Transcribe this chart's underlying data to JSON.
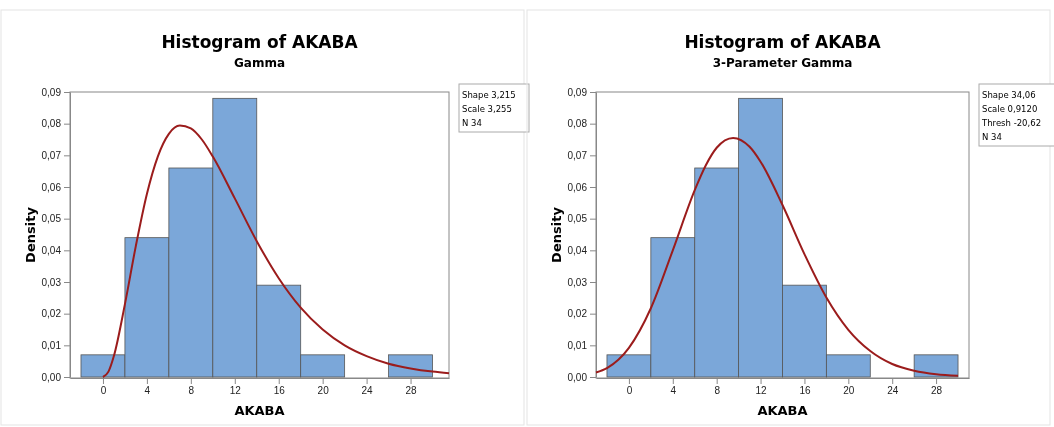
{
  "chart_data": [
    {
      "type": "histogram",
      "title": "Histogram of AKABA",
      "subtitle": "Gamma",
      "xlabel": "AKABA",
      "ylabel": "Density",
      "bins": [
        -2,
        2,
        6,
        10,
        14,
        18,
        22,
        26,
        30
      ],
      "values": [
        0.007,
        0.044,
        0.066,
        0.088,
        0.029,
        0.007,
        0,
        0.007
      ],
      "color": "#7ba7d9",
      "series": [
        {
          "type": "line",
          "color": "#9b1c1c",
          "x": [
            0,
            0.5,
            1,
            2,
            3,
            4,
            5,
            6,
            7,
            8,
            9,
            10,
            12,
            14,
            16,
            18,
            20,
            22,
            24,
            26,
            28,
            30,
            31.5
          ],
          "values": [
            0,
            0.0017,
            0.0067,
            0.023,
            0.0415,
            0.0578,
            0.0697,
            0.0768,
            0.0794,
            0.0785,
            0.075,
            0.0696,
            0.0564,
            0.0429,
            0.0312,
            0.0219,
            0.015,
            0.01,
            0.0066,
            0.0042,
            0.0027,
            0.0017,
            0.0012
          ]
        }
      ],
      "xlim": [
        -3,
        31.5
      ],
      "ylim": [
        0,
        0.09
      ],
      "xticks": [
        0,
        4,
        8,
        12,
        16,
        20,
        24,
        28
      ],
      "yticks": [
        {
          "value": 0,
          "label": "0,00"
        },
        {
          "value": 0.01,
          "label": "0,01"
        },
        {
          "value": 0.02,
          "label": "0,02"
        },
        {
          "value": 0.03,
          "label": "0,03"
        },
        {
          "value": 0.04,
          "label": "0,04"
        },
        {
          "value": 0.05,
          "label": "0,05"
        },
        {
          "value": 0.06,
          "label": "0,06"
        },
        {
          "value": 0.07,
          "label": "0,07"
        },
        {
          "value": 0.08,
          "label": "0,08"
        },
        {
          "value": 0.09,
          "label": "0,09"
        }
      ],
      "annotations": [
        "Shape 3,215",
        "Scale 3,255",
        "N 34"
      ]
    },
    {
      "type": "histogram",
      "title": "Histogram of AKABA",
      "subtitle": "3-Parameter Gamma",
      "xlabel": "AKABA",
      "ylabel": "Density",
      "bins": [
        -2,
        2,
        6,
        10,
        14,
        18,
        22,
        26,
        30
      ],
      "values": [
        0.007,
        0.044,
        0.066,
        0.088,
        0.029,
        0.007,
        0,
        0.007
      ],
      "color": "#7ba7d9",
      "series": [
        {
          "type": "line",
          "color": "#9b1c1c",
          "x": [
            -3,
            -2,
            0,
            2,
            4,
            6,
            7,
            8,
            9.5,
            11,
            12,
            14,
            16,
            18,
            20,
            22,
            24,
            26,
            28,
            30
          ],
          "values": [
            0.0014,
            0.0028,
            0.0092,
            0.0217,
            0.04,
            0.059,
            0.0668,
            0.0724,
            0.0755,
            0.0727,
            0.068,
            0.0543,
            0.0388,
            0.0251,
            0.0149,
            0.0082,
            0.0041,
            0.002,
            0.0009,
            0.0004
          ]
        }
      ],
      "xlim": [
        -3,
        31
      ],
      "ylim": [
        0,
        0.09
      ],
      "xticks": [
        0,
        4,
        8,
        12,
        16,
        20,
        24,
        28
      ],
      "yticks": [
        {
          "value": 0,
          "label": "0,00"
        },
        {
          "value": 0.01,
          "label": "0,01"
        },
        {
          "value": 0.02,
          "label": "0,02"
        },
        {
          "value": 0.03,
          "label": "0,03"
        },
        {
          "value": 0.04,
          "label": "0,04"
        },
        {
          "value": 0.05,
          "label": "0,05"
        },
        {
          "value": 0.06,
          "label": "0,06"
        },
        {
          "value": 0.07,
          "label": "0,07"
        },
        {
          "value": 0.08,
          "label": "0,08"
        },
        {
          "value": 0.09,
          "label": "0,09"
        }
      ],
      "annotations": [
        "Shape 34,06",
        "Scale 0,9120",
        "Thresh -20,62",
        "N 34"
      ]
    }
  ]
}
